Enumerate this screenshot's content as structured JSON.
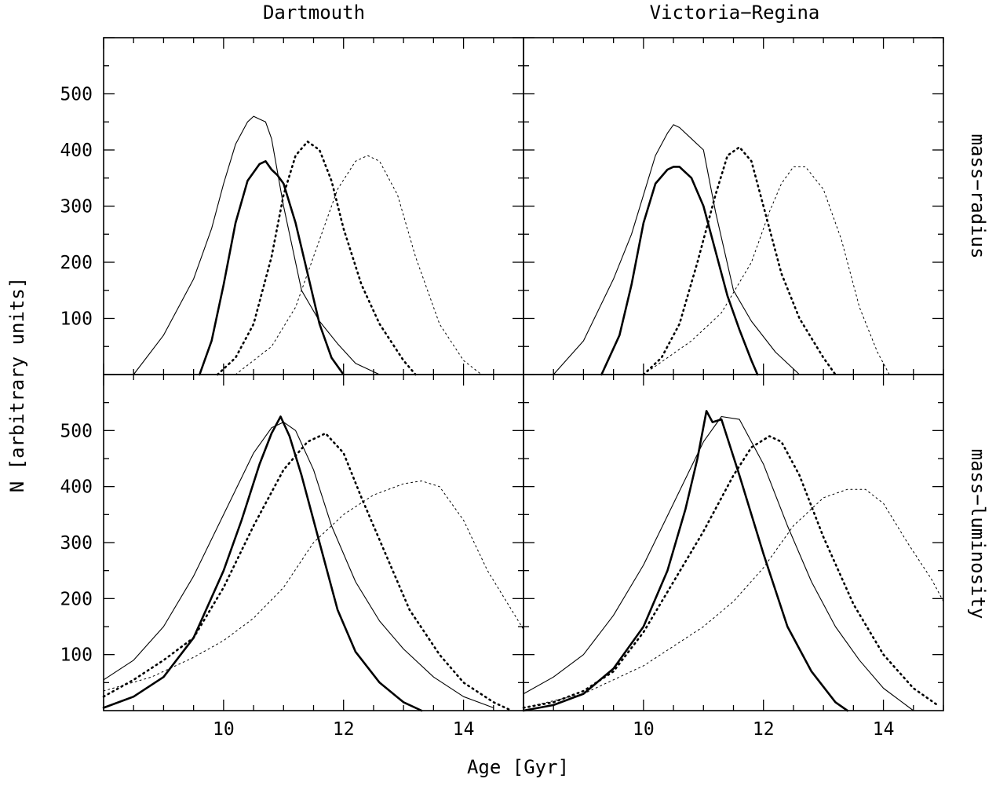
{
  "figure": {
    "col_titles": [
      "Dartmouth",
      "Victoria−Regina"
    ],
    "row_labels": [
      "mass−radius",
      "mass−luminosity"
    ],
    "xlabel": "Age [Gyr]",
    "ylabel": "N [arbitrary units]",
    "x_ticks": [
      "10",
      "12",
      "14"
    ],
    "y_ticks": [
      "100",
      "200",
      "300",
      "400",
      "500"
    ],
    "colors": {
      "axes": "#000000",
      "lines": "#000000",
      "background": "#ffffff"
    }
  },
  "chart_data": [
    {
      "type": "line",
      "title": "Dartmouth",
      "row_label": "mass−radius",
      "xlabel": "",
      "ylabel": "N [arbitrary units]",
      "xlim": [
        8,
        15
      ],
      "ylim": [
        0,
        600
      ],
      "grid": false,
      "series": [
        {
          "style": "thin-solid",
          "x": [
            8.5,
            9.0,
            9.5,
            9.8,
            10.0,
            10.2,
            10.4,
            10.5,
            10.6,
            10.7,
            10.8,
            11.0,
            11.3,
            11.6,
            11.9,
            12.2,
            12.6
          ],
          "y": [
            0,
            70,
            170,
            260,
            340,
            410,
            450,
            460,
            455,
            450,
            420,
            300,
            150,
            95,
            55,
            20,
            0
          ]
        },
        {
          "style": "thick-solid",
          "x": [
            9.6,
            9.8,
            10.0,
            10.2,
            10.4,
            10.6,
            10.7,
            10.8,
            10.9,
            11.0,
            11.2,
            11.4,
            11.6,
            11.8,
            12.0
          ],
          "y": [
            0,
            60,
            160,
            270,
            345,
            375,
            380,
            365,
            355,
            340,
            270,
            180,
            90,
            30,
            0
          ]
        },
        {
          "style": "thick-dotted",
          "x": [
            9.9,
            10.2,
            10.5,
            10.8,
            11.0,
            11.2,
            11.4,
            11.6,
            11.8,
            12.0,
            12.3,
            12.6,
            13.0,
            13.2
          ],
          "y": [
            0,
            30,
            90,
            210,
            320,
            390,
            415,
            400,
            345,
            260,
            160,
            90,
            25,
            0
          ]
        },
        {
          "style": "thin-dotted",
          "x": [
            10.2,
            10.8,
            11.2,
            11.6,
            11.9,
            12.2,
            12.4,
            12.6,
            12.9,
            13.2,
            13.6,
            14.0,
            14.3
          ],
          "y": [
            0,
            50,
            120,
            240,
            330,
            380,
            390,
            380,
            320,
            210,
            90,
            25,
            0
          ]
        }
      ]
    },
    {
      "type": "line",
      "title": "Victoria−Regina",
      "row_label": "mass−radius",
      "xlabel": "",
      "ylabel": "",
      "xlim": [
        8,
        15
      ],
      "ylim": [
        0,
        600
      ],
      "grid": false,
      "series": [
        {
          "style": "thin-solid",
          "x": [
            8.5,
            9.0,
            9.5,
            9.8,
            10.0,
            10.2,
            10.4,
            10.5,
            10.6,
            10.8,
            11.0,
            11.2,
            11.5,
            11.8,
            12.2,
            12.6
          ],
          "y": [
            0,
            60,
            170,
            250,
            320,
            390,
            430,
            445,
            440,
            420,
            400,
            290,
            150,
            95,
            40,
            0
          ]
        },
        {
          "style": "thick-solid",
          "x": [
            9.3,
            9.6,
            9.8,
            10.0,
            10.2,
            10.4,
            10.5,
            10.6,
            10.8,
            11.0,
            11.2,
            11.4,
            11.6,
            11.8,
            11.9
          ],
          "y": [
            0,
            70,
            160,
            270,
            340,
            365,
            370,
            370,
            350,
            300,
            220,
            140,
            80,
            25,
            0
          ]
        },
        {
          "style": "thick-dotted",
          "x": [
            10.0,
            10.3,
            10.6,
            10.9,
            11.2,
            11.4,
            11.6,
            11.8,
            12.0,
            12.3,
            12.6,
            13.0,
            13.2
          ],
          "y": [
            0,
            30,
            90,
            200,
            320,
            390,
            405,
            380,
            300,
            180,
            100,
            30,
            0
          ]
        },
        {
          "style": "thin-dotted",
          "x": [
            10.0,
            10.8,
            11.3,
            11.8,
            12.1,
            12.3,
            12.5,
            12.7,
            13.0,
            13.3,
            13.6,
            13.9,
            14.1
          ],
          "y": [
            0,
            60,
            110,
            200,
            290,
            340,
            370,
            370,
            330,
            240,
            120,
            40,
            0
          ]
        }
      ]
    },
    {
      "type": "line",
      "title": "",
      "row_label": "mass−luminosity",
      "xlabel": "Age [Gyr]",
      "ylabel": "N [arbitrary units]",
      "xlim": [
        8,
        15
      ],
      "ylim": [
        0,
        600
      ],
      "grid": false,
      "series": [
        {
          "style": "thin-solid",
          "x": [
            8.0,
            8.5,
            9.0,
            9.5,
            10.0,
            10.5,
            10.8,
            11.0,
            11.2,
            11.5,
            11.8,
            12.2,
            12.6,
            13.0,
            13.5,
            14.0,
            14.5
          ],
          "y": [
            55,
            90,
            150,
            240,
            350,
            460,
            505,
            515,
            500,
            430,
            330,
            230,
            160,
            110,
            60,
            25,
            5
          ]
        },
        {
          "style": "thick-solid",
          "x": [
            8.0,
            8.5,
            9.0,
            9.5,
            10.0,
            10.3,
            10.6,
            10.8,
            10.95,
            11.1,
            11.3,
            11.6,
            11.9,
            12.2,
            12.6,
            13.0,
            13.3
          ],
          "y": [
            5,
            25,
            60,
            130,
            250,
            340,
            440,
            495,
            525,
            490,
            420,
            300,
            180,
            105,
            50,
            15,
            0
          ]
        },
        {
          "style": "thick-dotted",
          "x": [
            8.0,
            8.5,
            9.0,
            9.5,
            10.0,
            10.5,
            11.0,
            11.4,
            11.7,
            12.0,
            12.3,
            12.7,
            13.1,
            13.6,
            14.0,
            14.5,
            14.8
          ],
          "y": [
            25,
            55,
            90,
            130,
            220,
            330,
            430,
            480,
            495,
            460,
            380,
            280,
            180,
            100,
            50,
            15,
            0
          ]
        },
        {
          "style": "thin-dotted",
          "x": [
            8.0,
            8.8,
            9.5,
            10.0,
            10.5,
            11.0,
            11.5,
            12.0,
            12.5,
            13.0,
            13.3,
            13.6,
            14.0,
            14.4,
            14.8,
            15.0
          ],
          "y": [
            35,
            60,
            95,
            125,
            165,
            220,
            300,
            350,
            385,
            405,
            410,
            400,
            340,
            250,
            180,
            145
          ]
        }
      ]
    },
    {
      "type": "line",
      "title": "",
      "row_label": "mass−luminosity",
      "xlabel": "Age [Gyr]",
      "ylabel": "",
      "xlim": [
        8,
        15
      ],
      "ylim": [
        0,
        600
      ],
      "grid": false,
      "series": [
        {
          "style": "thin-solid",
          "x": [
            8.0,
            8.5,
            9.0,
            9.5,
            10.0,
            10.5,
            11.0,
            11.3,
            11.6,
            12.0,
            12.4,
            12.8,
            13.2,
            13.6,
            14.0,
            14.5
          ],
          "y": [
            30,
            60,
            100,
            170,
            260,
            370,
            480,
            525,
            520,
            440,
            330,
            230,
            150,
            90,
            40,
            0
          ]
        },
        {
          "style": "thick-solid",
          "x": [
            8.0,
            8.5,
            9.0,
            9.5,
            10.0,
            10.4,
            10.7,
            10.9,
            11.05,
            11.15,
            11.3,
            11.6,
            12.0,
            12.4,
            12.8,
            13.2,
            13.4
          ],
          "y": [
            0,
            10,
            30,
            75,
            150,
            250,
            360,
            450,
            535,
            515,
            520,
            420,
            280,
            150,
            70,
            15,
            0
          ]
        },
        {
          "style": "thick-dotted",
          "x": [
            8.0,
            8.5,
            9.0,
            9.5,
            10.0,
            10.5,
            11.0,
            11.5,
            11.8,
            12.1,
            12.3,
            12.6,
            13.0,
            13.5,
            14.0,
            14.5,
            14.9
          ],
          "y": [
            5,
            15,
            35,
            70,
            140,
            230,
            320,
            420,
            470,
            490,
            480,
            420,
            310,
            190,
            100,
            40,
            10
          ]
        },
        {
          "style": "thin-dotted",
          "x": [
            8.0,
            9.0,
            10.0,
            10.5,
            11.0,
            11.5,
            12.0,
            12.5,
            13.0,
            13.4,
            13.7,
            14.0,
            14.4,
            14.8,
            15.0
          ],
          "y": [
            5,
            30,
            80,
            115,
            150,
            195,
            255,
            330,
            380,
            395,
            395,
            370,
            300,
            235,
            195
          ]
        }
      ]
    }
  ]
}
